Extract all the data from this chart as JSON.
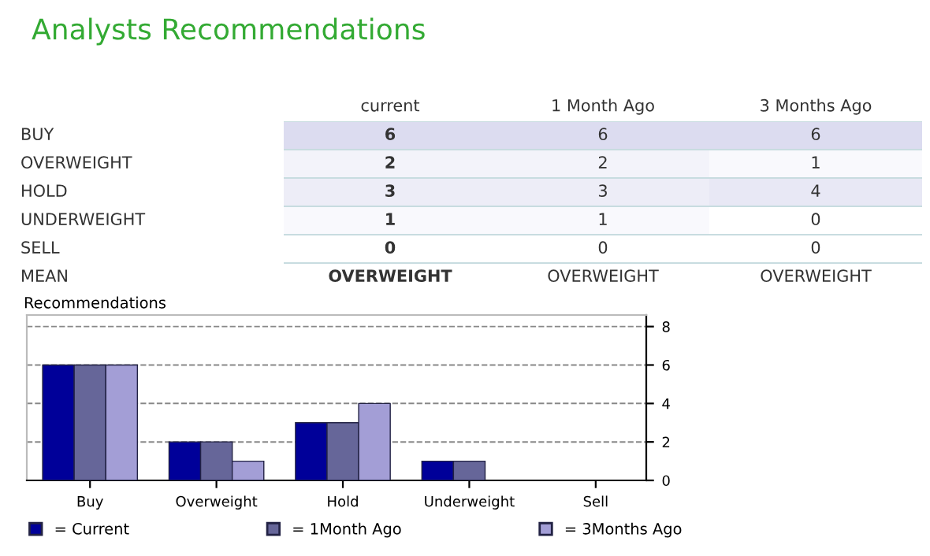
{
  "chart_data": [
    {
      "type": "heatmap",
      "title": "Analysts Recommendations",
      "categories": [
        "current",
        "1 Month Ago",
        "3 Months Ago"
      ],
      "y_categories": [
        "BUY",
        "OVERWEIGHT",
        "HOLD",
        "UNDERWEIGHT",
        "SELL",
        "MEAN"
      ],
      "cells": [
        [
          6,
          6,
          6
        ],
        [
          2,
          2,
          1
        ],
        [
          3,
          3,
          4
        ],
        [
          1,
          1,
          0
        ],
        [
          0,
          0,
          0
        ],
        [
          null,
          null,
          null
        ]
      ],
      "cell_labels": [
        [
          "6",
          "6",
          "6"
        ],
        [
          "2",
          "2",
          "1"
        ],
        [
          "3",
          "3",
          "4"
        ],
        [
          "1",
          "1",
          "0"
        ],
        [
          "0",
          "0",
          "0"
        ],
        [
          "OVERWEIGHT",
          "OVERWEIGHT",
          "OVERWEIGHT"
        ]
      ]
    },
    {
      "type": "bar",
      "title": "Recommendations",
      "categories": [
        "Buy",
        "Overweight",
        "Hold",
        "Underweight",
        "Sell"
      ],
      "series": [
        {
          "name": "= Current",
          "color": "#000099",
          "values": [
            6,
            2,
            3,
            1,
            0
          ]
        },
        {
          "name": "= 1Month Ago",
          "color": "#666699",
          "values": [
            6,
            2,
            3,
            1,
            0
          ]
        },
        {
          "name": "= 3Months Ago",
          "color": "#a39ed6",
          "values": [
            6,
            1,
            4,
            0,
            0
          ]
        }
      ],
      "ylim": [
        0,
        8.6
      ],
      "yticks": [
        0,
        2,
        4,
        6,
        8
      ],
      "grid": "y",
      "line_style": "dashed",
      "legend": "bottom"
    }
  ]
}
